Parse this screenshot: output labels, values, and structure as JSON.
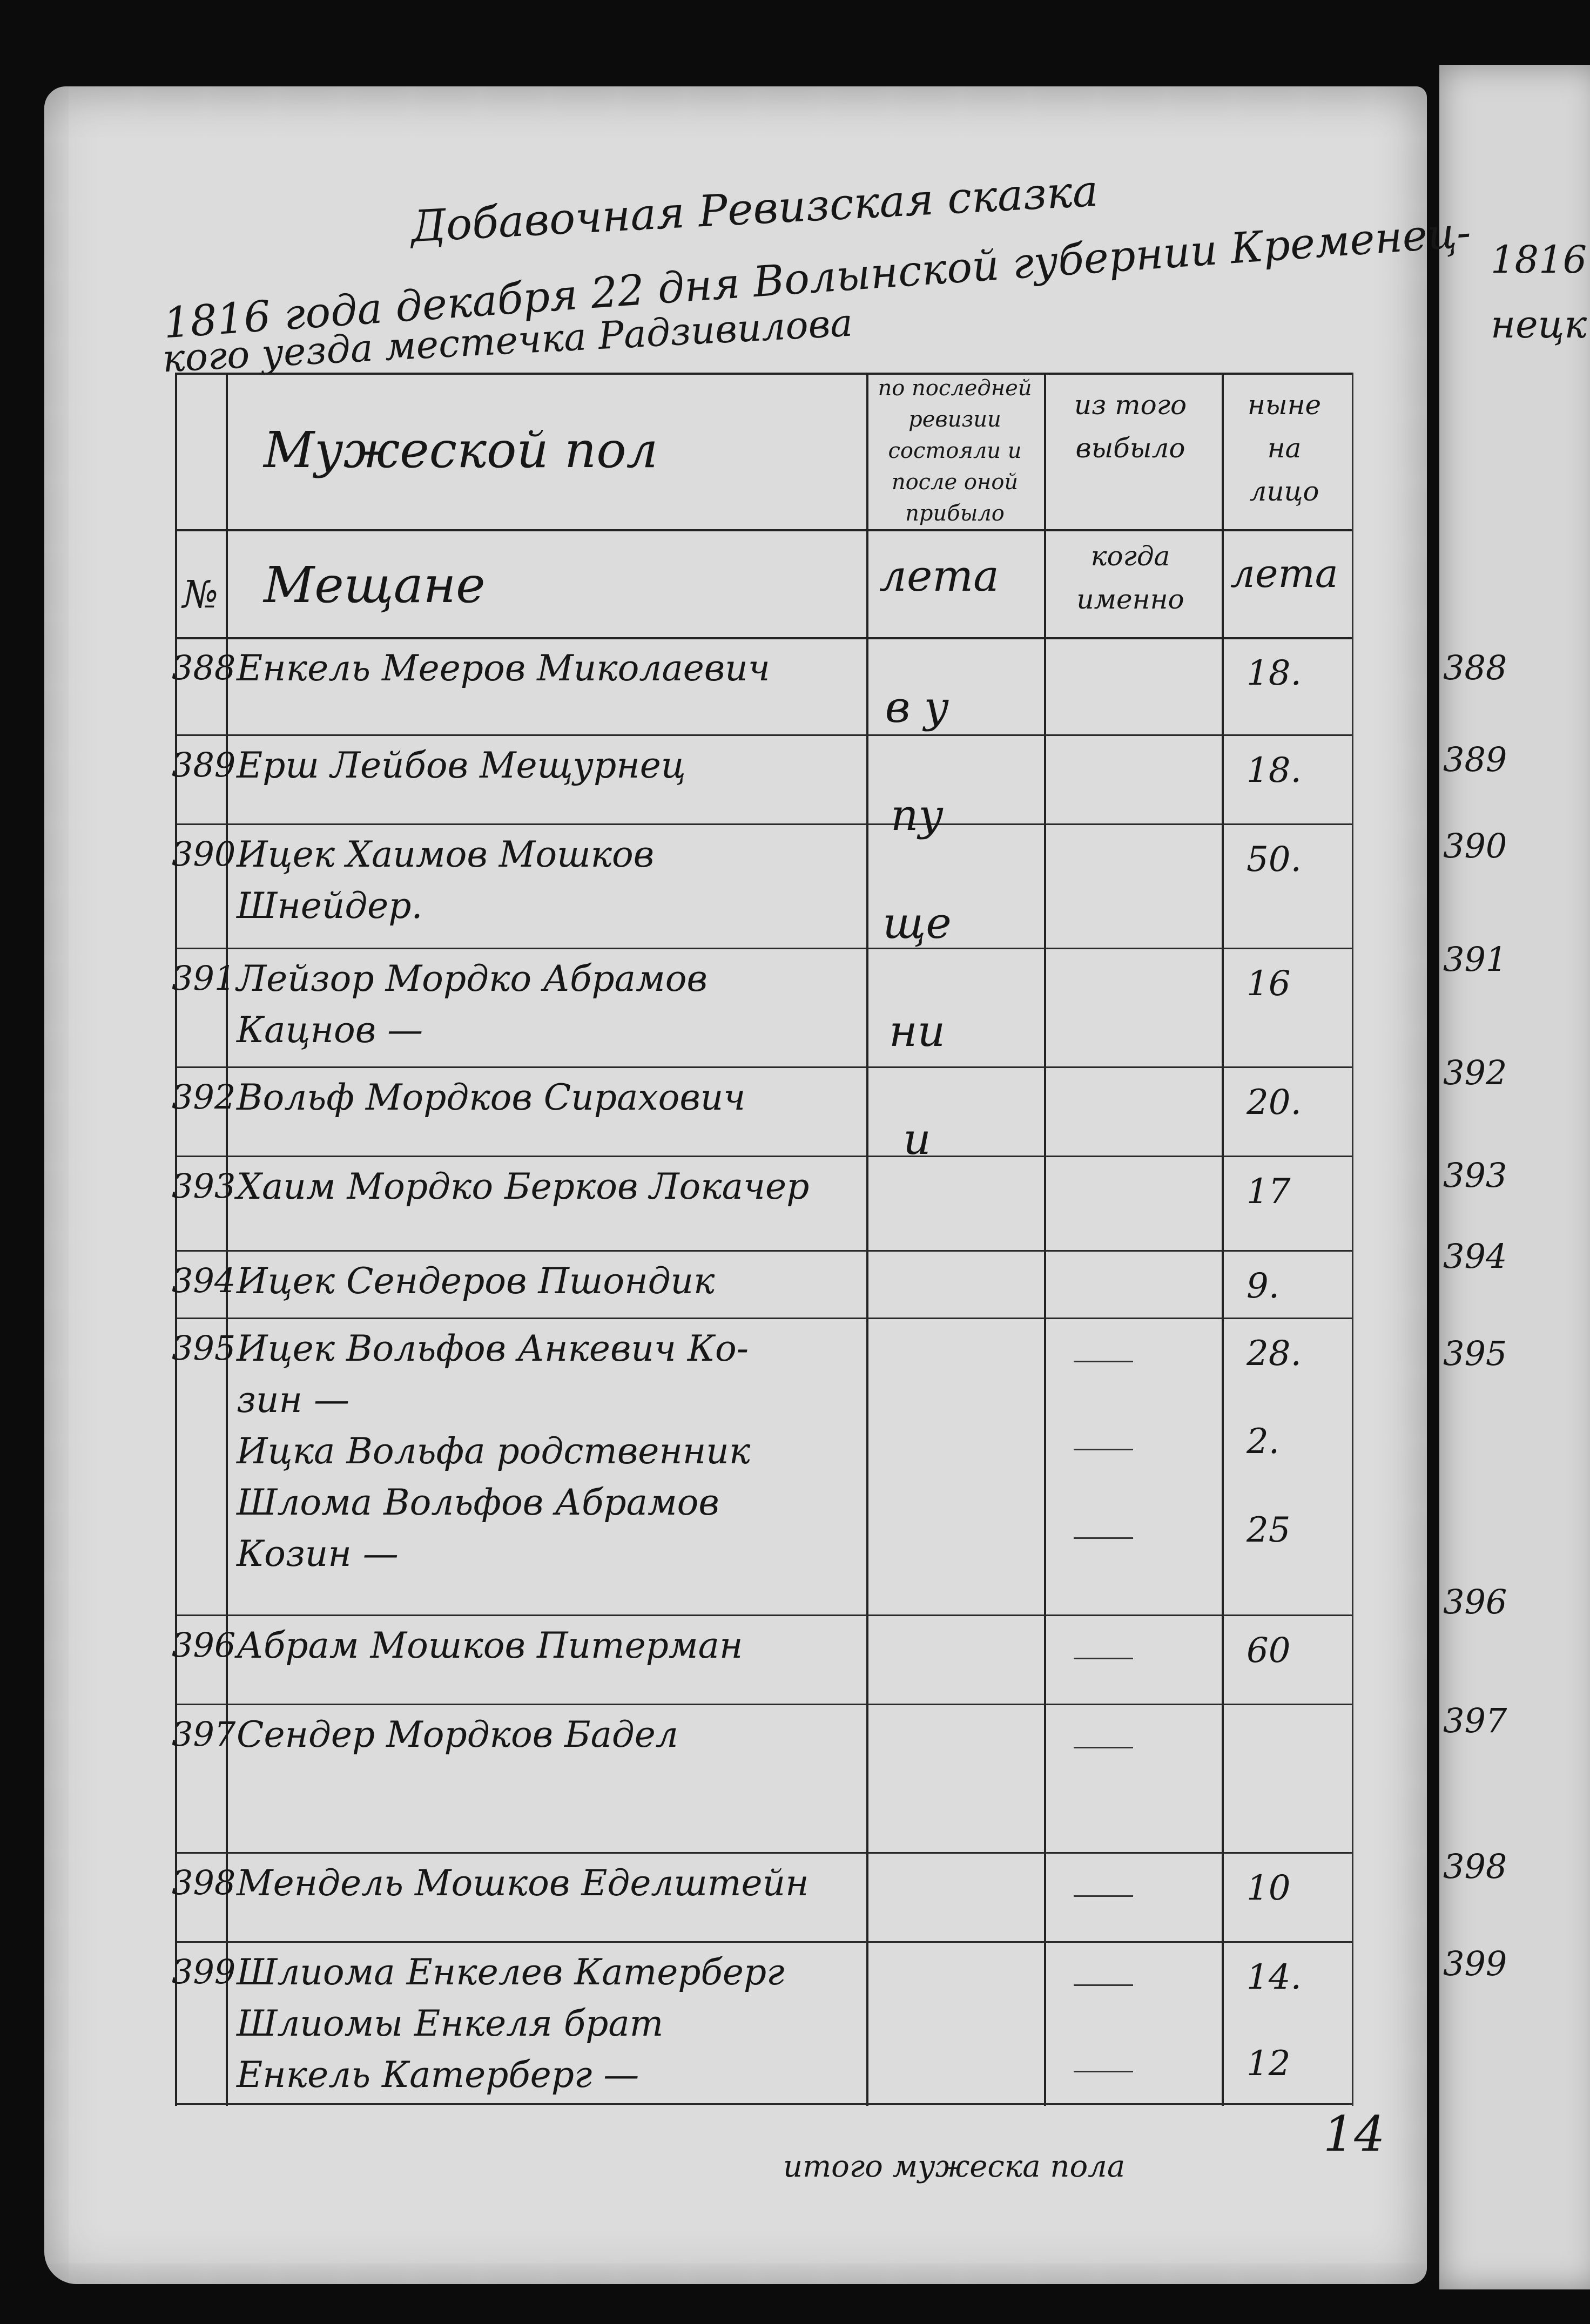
{
  "header": {
    "title": "Добавочная Ревизская сказка",
    "line1": "1816 года декабря 22 дня Волынской губернии Кременец-",
    "line2": "кого уезда местечка Радзивилова"
  },
  "table": {
    "section_title": "Мужеской пол",
    "col_prev": "по последней ревизии состояли и после оной прибыло",
    "col_left": "из того выбыло",
    "col_now": "ныне на лицо",
    "sub_num": "№",
    "sub_estate": "Мещане",
    "sub_age1": "лета",
    "sub_when": "когда именно",
    "sub_age2": "лета",
    "vertical_note": "в упущении",
    "rows": [
      {
        "num": "388",
        "name": [
          "Енкель Мееров Миколаевич"
        ],
        "ages": [
          "18."
        ]
      },
      {
        "num": "389",
        "name": [
          "Ерш Лейбов Мещурнец"
        ],
        "ages": [
          "18."
        ]
      },
      {
        "num": "390",
        "name": [
          "Ицек Хаимов Мошков",
          "Шнейдер."
        ],
        "ages": [
          "50."
        ]
      },
      {
        "num": "391",
        "name": [
          "Лейзор Мордко Абрамов",
          "Кацнов —"
        ],
        "ages": [
          "16"
        ]
      },
      {
        "num": "392",
        "name": [
          "Вольф Мордков Сирахович"
        ],
        "ages": [
          "20."
        ]
      },
      {
        "num": "393",
        "name": [
          "Хаим Мордко Берков Локачер"
        ],
        "ages": [
          "17"
        ]
      },
      {
        "num": "394",
        "name": [
          "Ицек Сендеров Пшондик"
        ],
        "ages": [
          "9."
        ]
      },
      {
        "num": "395",
        "name": [
          "Ицек Вольфов Анкевич Ко-",
          "зин —",
          "Ицка Вольфа родственник",
          "Шлома Вольфов Абрамов",
          "Козин —"
        ],
        "ages": [
          "28.",
          "2.",
          "25"
        ]
      },
      {
        "num": "396",
        "name": [
          "Абрам Мошков Питерман"
        ],
        "ages": [
          "60"
        ]
      },
      {
        "num": "397",
        "name": [
          "Сендер Мордков Бадел"
        ],
        "ages": [
          ""
        ]
      },
      {
        "num": "398",
        "name": [
          "Мендель Мошков Еделштейн"
        ],
        "ages": [
          "10"
        ]
      },
      {
        "num": "399",
        "name": [
          "Шлиома Енкелев Катерберг",
          "Шлиомы Енкеля брат",
          "Енкель Катерберг —"
        ],
        "ages": [
          "14.",
          "12"
        ]
      }
    ]
  },
  "footer": {
    "page_number": "14",
    "total_label": "итого мужеска пола"
  },
  "next_page": {
    "line1": "1816",
    "line2": "нецк",
    "numbers": [
      "388",
      "389",
      "390",
      "391",
      "392",
      "393",
      "394",
      "395",
      "396",
      "397",
      "398",
      "399"
    ]
  }
}
